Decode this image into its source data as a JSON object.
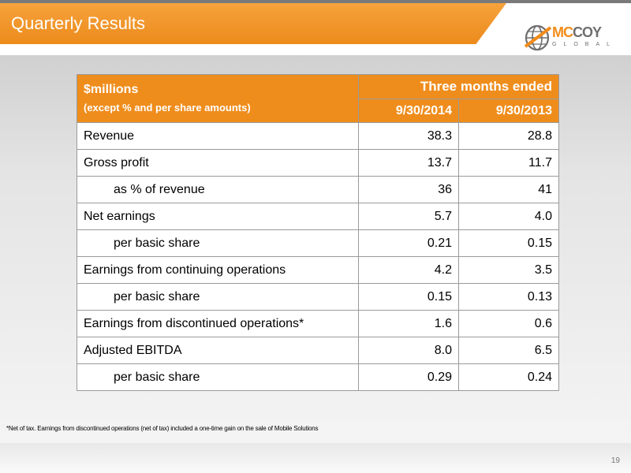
{
  "slide": {
    "title": "Quarterly Results",
    "page_number": "19"
  },
  "logo": {
    "name_orange": "MC",
    "name_grey": "COY",
    "subtitle": "GLOBAL"
  },
  "table": {
    "header_line1": "$millions",
    "header_line2": "(except % and per share amounts)",
    "period_header": "Three months ended",
    "columns": [
      "9/30/2014",
      "9/30/2013"
    ],
    "rows": [
      {
        "label": "Revenue",
        "v2014": "38.3",
        "v2013": "28.8"
      },
      {
        "label": "Gross profit",
        "v2014": "13.7",
        "v2013": "11.7"
      },
      {
        "label": "as % of revenue",
        "v2014": "36",
        "v2013": "41"
      },
      {
        "label": "Net earnings",
        "v2014": "5.7",
        "v2013": "4.0"
      },
      {
        "label": "per basic share",
        "v2014": "0.21",
        "v2013": "0.15"
      },
      {
        "label": "Earnings from continuing operations",
        "v2014": "4.2",
        "v2013": "3.5"
      },
      {
        "label": "per basic share",
        "v2014": "0.15",
        "v2013": "0.13"
      },
      {
        "label": "Earnings from discontinued operations*",
        "v2014": "1.6",
        "v2013": "0.6"
      },
      {
        "label": "Adjusted EBITDA",
        "v2014": "8.0",
        "v2013": "6.5"
      },
      {
        "label": "per basic share",
        "v2014": "0.29",
        "v2013": "0.24"
      }
    ]
  },
  "footnote": "*Net of tax. Earnings from discontinued operations (net of tax) included a one-time gain on the sale of Mobile Solutions",
  "colors": {
    "accent": "#ef8d1c",
    "logo_grey": "#6e6e6e"
  },
  "icons": {
    "logo": "globe-logo-icon"
  }
}
